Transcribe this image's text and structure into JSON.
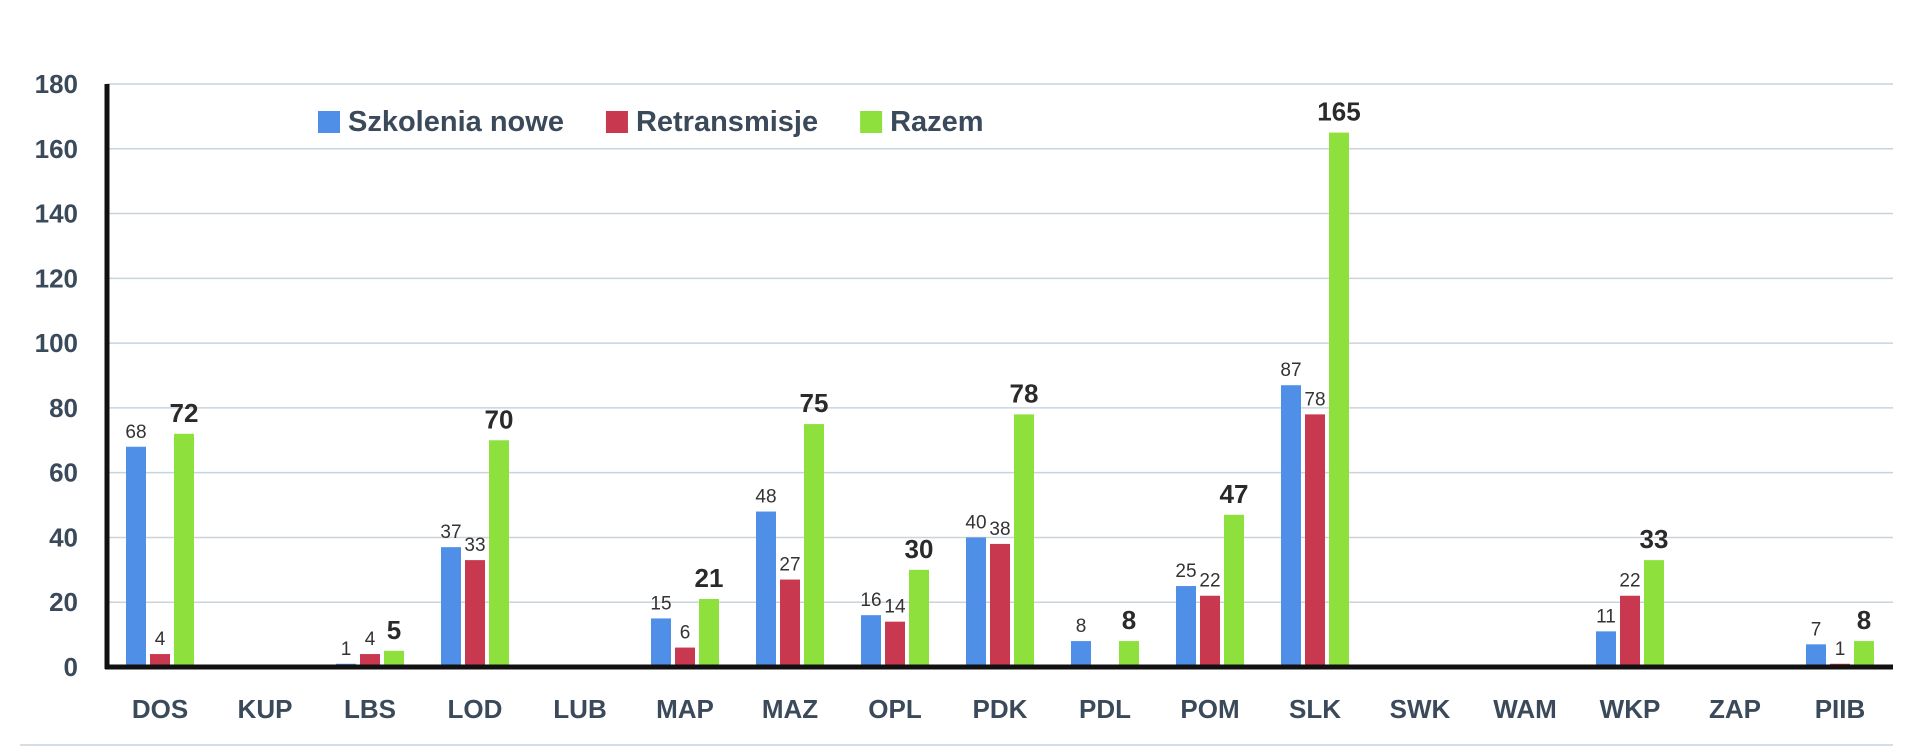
{
  "chart_data": {
    "type": "bar",
    "categories": [
      "DOS",
      "KUP",
      "LBS",
      "LOD",
      "LUB",
      "MAP",
      "MAZ",
      "OPL",
      "PDK",
      "PDL",
      "POM",
      "SLK",
      "SWK",
      "WAM",
      "WKP",
      "ZAP",
      "PIIB"
    ],
    "series": [
      {
        "name": "Szkolenia nowe",
        "color": "#4f8fe8",
        "values": [
          68,
          null,
          1,
          37,
          null,
          15,
          48,
          16,
          40,
          8,
          25,
          87,
          null,
          null,
          11,
          null,
          7
        ]
      },
      {
        "name": "Retransmisje",
        "color": "#c8394f",
        "values": [
          4,
          null,
          4,
          33,
          null,
          6,
          27,
          14,
          38,
          null,
          22,
          78,
          null,
          null,
          22,
          null,
          1
        ]
      },
      {
        "name": "Razem",
        "color": "#8ee03c",
        "values": [
          72,
          null,
          5,
          70,
          null,
          21,
          75,
          30,
          78,
          8,
          47,
          165,
          null,
          null,
          33,
          null,
          8
        ]
      }
    ],
    "ylim": [
      0,
      180
    ],
    "yticks": [
      0,
      20,
      40,
      60,
      80,
      100,
      120,
      140,
      160,
      180
    ],
    "grid": true,
    "legend": "top-left"
  }
}
